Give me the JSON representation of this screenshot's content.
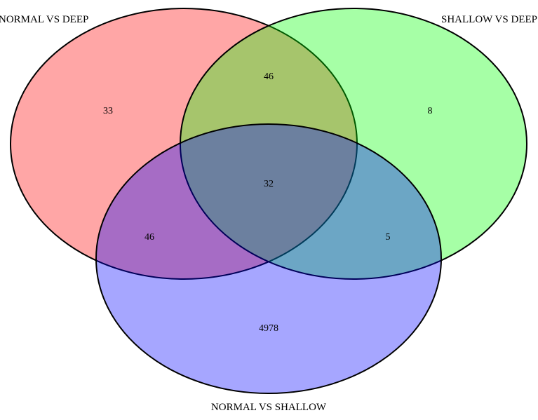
{
  "diagram": {
    "type": "venn-3",
    "sets": [
      {
        "id": "A",
        "label": "NORMAL VS DEEP",
        "color": "#ff0000",
        "opacity": 0.35
      },
      {
        "id": "B",
        "label": "SHALLOW VS DEEP",
        "color": "#00ff00",
        "opacity": 0.35
      },
      {
        "id": "C",
        "label": "NORMAL VS SHALLOW",
        "color": "#0000ff",
        "opacity": 0.35
      }
    ],
    "regions": {
      "a_only": "33",
      "b_only": "8",
      "c_only": "4978",
      "ab_only": "46",
      "ac_only": "46",
      "bc_only": "5",
      "abc": "32"
    }
  }
}
